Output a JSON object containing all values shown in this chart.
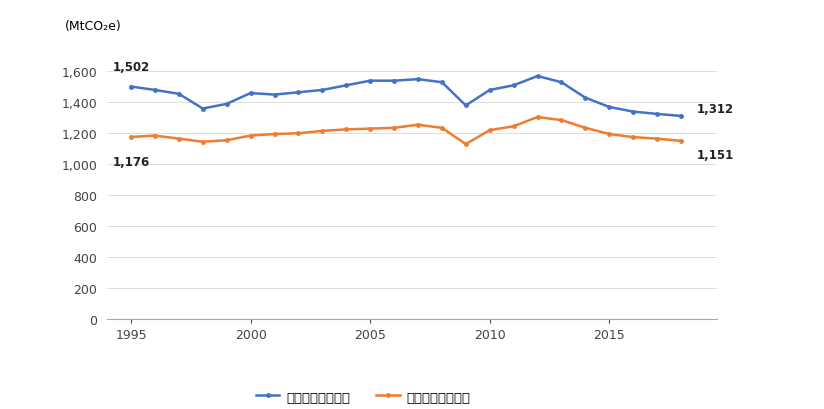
{
  "years": [
    1995,
    1996,
    1997,
    1998,
    1999,
    2000,
    2001,
    2002,
    2003,
    2004,
    2005,
    2006,
    2007,
    2008,
    2009,
    2010,
    2011,
    2012,
    2013,
    2014,
    2015,
    2016,
    2017,
    2018
  ],
  "consumption": [
    1502,
    1480,
    1455,
    1360,
    1390,
    1460,
    1450,
    1465,
    1480,
    1510,
    1540,
    1540,
    1550,
    1530,
    1380,
    1480,
    1510,
    1570,
    1530,
    1430,
    1370,
    1340,
    1325,
    1312
  ],
  "production": [
    1176,
    1185,
    1165,
    1145,
    1155,
    1185,
    1195,
    1200,
    1215,
    1225,
    1230,
    1235,
    1255,
    1235,
    1130,
    1220,
    1245,
    1305,
    1285,
    1235,
    1195,
    1175,
    1165,
    1151
  ],
  "consumption_color": "#4472C4",
  "production_color": "#ED7D31",
  "consumption_label": "消費ベース排出量",
  "production_label": "生産ベース排出量",
  "ylabel": "(MtCO₂e)",
  "ylim": [
    0,
    1750
  ],
  "yticks": [
    0,
    200,
    400,
    600,
    800,
    1000,
    1200,
    1400,
    1600
  ],
  "first_consumption_label": "1,502",
  "last_consumption_label": "1,312",
  "first_production_label": "1,176",
  "last_production_label": "1,151",
  "background_color": "#ffffff",
  "line_width": 1.8
}
